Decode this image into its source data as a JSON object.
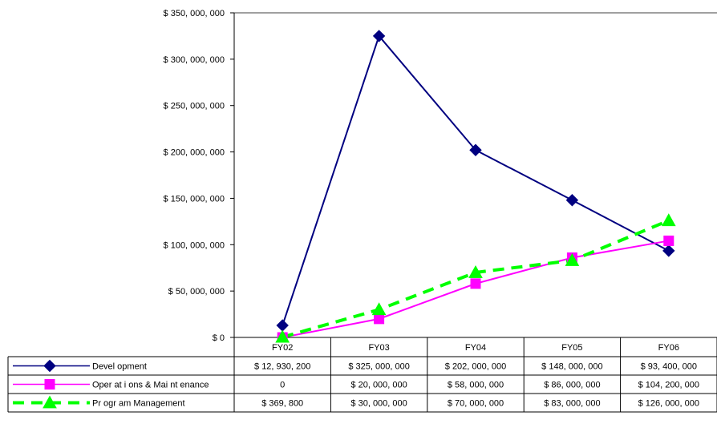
{
  "chart_data": {
    "type": "line",
    "categories": [
      "FY02",
      "FY03",
      "FY04",
      "FY05",
      "FY06"
    ],
    "ylim": [
      0,
      350000000
    ],
    "ytick_labels": [
      "$ 0",
      "$ 50, 000, 000",
      "$ 100, 000, 000",
      "$ 150, 000, 000",
      "$ 200, 000, 000",
      "$ 250, 000, 000",
      "$ 300, 000, 000",
      "$ 350, 000, 000"
    ],
    "grid": false,
    "legend": "data-table",
    "series": [
      {
        "name": "Devel opment",
        "values": [
          12930200,
          325000000,
          202000000,
          148000000,
          93400000
        ],
        "labels": [
          "$ 12, 930, 200",
          "$ 325, 000, 000",
          "$ 202, 000, 000",
          "$ 148, 000, 000",
          "$ 93, 400, 000"
        ],
        "color": "#000080",
        "marker": "diamond",
        "dash": "solid"
      },
      {
        "name": "Oper at i ons & Mai nt enance",
        "values": [
          0,
          20000000,
          58000000,
          86000000,
          104200000
        ],
        "labels": [
          "0",
          "$ 20, 000, 000",
          "$ 58, 000, 000",
          "$ 86, 000, 000",
          "$ 104, 200, 000"
        ],
        "color": "#ff00ff",
        "marker": "square",
        "dash": "solid"
      },
      {
        "name": "Pr ogr am Management",
        "values": [
          369800,
          30000000,
          70000000,
          83000000,
          126000000
        ],
        "labels": [
          "$ 369, 800",
          "$ 30, 000, 000",
          "$ 70, 000, 000",
          "$ 83, 000, 000",
          "$ 126, 000, 000"
        ],
        "color": "#00ff00",
        "marker": "triangle",
        "dash": "dashed"
      }
    ]
  }
}
